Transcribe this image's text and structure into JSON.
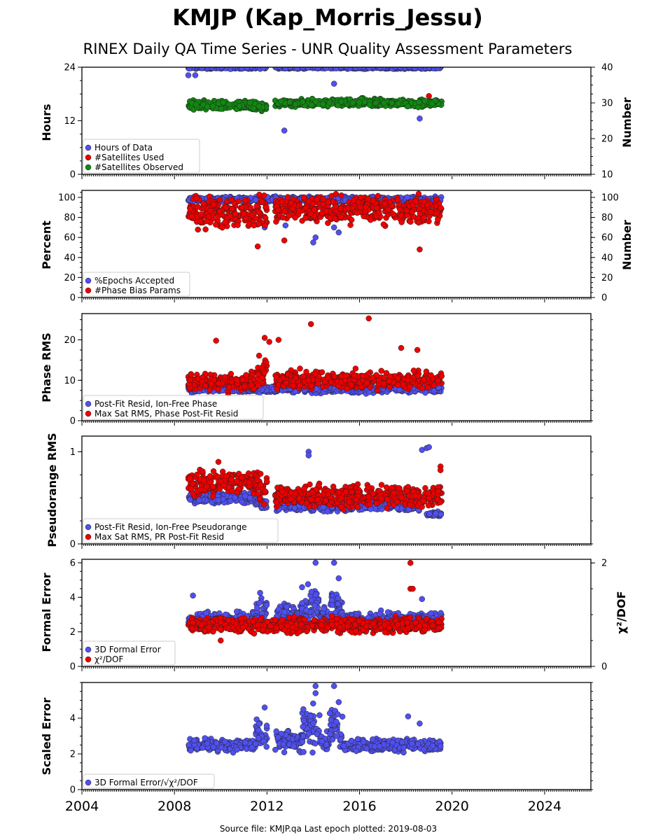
{
  "title": "KMJP (Kap_Morris_Jessu)",
  "subtitle": "RINEX Daily QA Time Series - UNR Quality Assessment Parameters",
  "source_text": "Source file: KMJP.qa Last epoch plotted: 2019-08-03",
  "colors": {
    "blue": "#5050f0",
    "red": "#ee0000",
    "green": "#118811"
  },
  "chart_data": [
    {
      "type": "scatter",
      "xlim": [
        2004,
        2026
      ],
      "xticks": [
        "2004",
        "2008",
        "2012",
        "2016",
        "2020",
        "2024"
      ],
      "ylabel": "Hours",
      "ylim": [
        0,
        24
      ],
      "yticks": [
        "0",
        "12",
        "24"
      ],
      "y2label": "Number",
      "y2lim": [
        10,
        40
      ],
      "y2ticks": [
        "10",
        "20",
        "30",
        "40"
      ],
      "series": [
        {
          "name": "Hours of Data",
          "color": "#5050f0",
          "axis": "left",
          "segments": [
            [
              2008.6,
              2012.0,
              23.9,
              0.3
            ],
            [
              2012.35,
              2019.55,
              23.9,
              0.3
            ]
          ],
          "outliers": [
            [
              2008.6,
              22.2
            ],
            [
              2008.9,
              22.2
            ],
            [
              2012.75,
              9.8
            ],
            [
              2014.9,
              20.3
            ],
            [
              2018.6,
              12.5
            ]
          ]
        },
        {
          "name": "#Satellites Used",
          "color": "#ee0000",
          "axis": "right",
          "segments": [],
          "outliers": [
            [
              2019.0,
              31.9
            ]
          ]
        },
        {
          "name": "#Satellites Observed",
          "color": "#118811",
          "axis": "right",
          "segments": [
            [
              2008.6,
              2011.2,
              29.3,
              1.6
            ],
            [
              2011.2,
              2012.0,
              29.0,
              1.6
            ],
            [
              2012.35,
              2019.55,
              30.0,
              1.3
            ]
          ],
          "outliers": []
        }
      ],
      "legend_pos": "lower-left"
    },
    {
      "type": "scatter",
      "xlim": [
        2004,
        2026
      ],
      "ylabel": "Percent",
      "ylim": [
        0,
        107
      ],
      "yticks": [
        "0",
        "20",
        "40",
        "60",
        "80",
        "100"
      ],
      "y2label": "Number",
      "y2lim": [
        0,
        107
      ],
      "y2ticks": [
        "0",
        "20",
        "40",
        "60",
        "80",
        "100"
      ],
      "series": [
        {
          "name": "%Epochs Accepted",
          "color": "#5050f0",
          "axis": "left",
          "segments": [
            [
              2008.6,
              2019.55,
              98,
              3
            ]
          ],
          "outliers": [
            [
              2011.9,
              70
            ],
            [
              2012.8,
              72
            ],
            [
              2014.0,
              55
            ],
            [
              2014.1,
              60
            ],
            [
              2014.9,
              70
            ],
            [
              2015.1,
              65
            ]
          ]
        },
        {
          "name": "#Phase Bias Params",
          "color": "#ee0000",
          "axis": "right",
          "segments": [
            [
              2008.6,
              2012.0,
              85,
              18
            ],
            [
              2012.35,
              2019.55,
              88,
              16
            ]
          ],
          "outliers": [
            [
              2011.6,
              51
            ],
            [
              2012.75,
              57
            ],
            [
              2018.6,
              48
            ]
          ]
        }
      ],
      "legend_pos": "lower-left"
    },
    {
      "type": "scatter",
      "xlim": [
        2004,
        2026
      ],
      "ylabel": "Phase RMS",
      "ylim": [
        0,
        26.5
      ],
      "yticks": [
        "0",
        "10",
        "20"
      ],
      "series": [
        {
          "name": "Post-Fit Resid, Ion-Free Phase",
          "color": "#5050f0",
          "axis": "left",
          "segments": [
            [
              2008.6,
              2019.55,
              7.8,
              1.0
            ]
          ],
          "outliers": []
        },
        {
          "name": "Max Sat RMS, Phase Post-Fit Resid",
          "color": "#ee0000",
          "axis": "left",
          "segments": [
            [
              2008.6,
              2011.6,
              9.5,
              2.5
            ],
            [
              2011.6,
              2012.0,
              12.0,
              5.0
            ],
            [
              2012.35,
              2019.55,
              10.0,
              2.5
            ]
          ],
          "outliers": [
            [
              2009.8,
              19.8
            ],
            [
              2011.9,
              20.5
            ],
            [
              2012.1,
              19.5
            ],
            [
              2012.5,
              20.0
            ],
            [
              2013.9,
              23.9
            ],
            [
              2016.4,
              25.3
            ],
            [
              2017.8,
              18.0
            ],
            [
              2018.5,
              17.5
            ]
          ]
        }
      ],
      "legend_pos": "lower-left"
    },
    {
      "type": "scatter",
      "xlim": [
        2004,
        2026
      ],
      "ylabel": "Pseudorange RMS",
      "ylim": [
        0,
        1.17
      ],
      "yticks": [
        "0",
        "1"
      ],
      "series": [
        {
          "name": "Post-Fit Resid, Ion-Free Pseudorange",
          "color": "#5050f0",
          "axis": "left",
          "segments": [
            [
              2008.6,
              2011.5,
              0.5,
              0.07
            ],
            [
              2011.5,
              2012.0,
              0.44,
              0.07
            ],
            [
              2012.35,
              2018.7,
              0.42,
              0.07
            ],
            [
              2018.9,
              2019.55,
              0.32,
              0.03
            ]
          ],
          "outliers": [
            [
              2013.8,
              1.0
            ],
            [
              2013.8,
              0.96
            ],
            [
              2018.7,
              1.02
            ],
            [
              2018.9,
              1.04
            ],
            [
              2019.0,
              1.05
            ]
          ]
        },
        {
          "name": "Max Sat RMS, PR Post-Fit Resid",
          "color": "#ee0000",
          "axis": "left",
          "segments": [
            [
              2008.6,
              2011.5,
              0.65,
              0.15
            ],
            [
              2011.5,
              2012.0,
              0.6,
              0.18
            ],
            [
              2012.35,
              2019.55,
              0.52,
              0.14
            ]
          ],
          "outliers": [
            [
              2009.9,
              0.89
            ],
            [
              2019.5,
              0.84
            ],
            [
              2019.5,
              0.8
            ]
          ]
        }
      ],
      "legend_pos": "lower-left"
    },
    {
      "type": "scatter",
      "xlim": [
        2004,
        2026
      ],
      "ylabel": "Formal Error",
      "ylim": [
        0,
        6.2
      ],
      "yticks": [
        "0",
        "2",
        "4",
        "6"
      ],
      "y2label": "χ²/DOF",
      "y2lim": [
        0,
        2.07
      ],
      "y2ticks": [
        "0",
        "2"
      ],
      "series": [
        {
          "name": "3D Formal Error",
          "color": "#5050f0",
          "axis": "left",
          "segments": [
            [
              2008.6,
              2011.5,
              2.7,
              0.5
            ],
            [
              2011.5,
              2012.0,
              3.2,
              1.0
            ],
            [
              2012.35,
              2013.5,
              3.0,
              0.8
            ],
            [
              2013.5,
              2014.3,
              3.6,
              1.5
            ],
            [
              2014.3,
              2014.7,
              2.9,
              0.6
            ],
            [
              2014.7,
              2015.3,
              3.5,
              1.3
            ],
            [
              2015.3,
              2019.55,
              2.7,
              0.5
            ]
          ],
          "outliers": [
            [
              2008.8,
              4.1
            ],
            [
              2014.1,
              6.0
            ],
            [
              2014.9,
              6.0
            ],
            [
              2015.1,
              5.1
            ],
            [
              2018.7,
              3.9
            ]
          ]
        },
        {
          "name": "χ²/DOF",
          "color": "#ee0000",
          "axis": "right",
          "segments": [
            [
              2008.6,
              2019.55,
              0.8,
              0.17
            ]
          ],
          "outliers": [
            [
              2010.0,
              0.5
            ],
            [
              2018.2,
              2.0
            ],
            [
              2018.2,
              1.5
            ],
            [
              2018.3,
              1.5
            ]
          ]
        }
      ],
      "legend": [
        "3D Formal Error",
        "χ²/DOF"
      ],
      "legend_pos": "lower-left"
    },
    {
      "type": "scatter",
      "xlim": [
        2004,
        2026
      ],
      "ylabel": "Scaled Error",
      "ylim": [
        0,
        6
      ],
      "yticks": [
        "0",
        "2",
        "4"
      ],
      "xticks": [
        "2004",
        "2008",
        "2012",
        "2016",
        "2020",
        "2024"
      ],
      "series": [
        {
          "name": "3D Formal Error/√χ²/DOF",
          "color": "#5050f0",
          "axis": "left",
          "segments": [
            [
              2008.6,
              2011.5,
              2.5,
              0.4
            ],
            [
              2011.5,
              2012.0,
              3.0,
              1.0
            ],
            [
              2012.35,
              2013.5,
              2.8,
              0.8
            ],
            [
              2013.5,
              2014.3,
              3.4,
              1.5
            ],
            [
              2014.3,
              2014.7,
              2.7,
              0.6
            ],
            [
              2014.7,
              2015.3,
              3.3,
              1.3
            ],
            [
              2015.3,
              2019.55,
              2.5,
              0.4
            ]
          ],
          "outliers": [
            [
              2011.9,
              4.6
            ],
            [
              2014.1,
              5.8
            ],
            [
              2014.1,
              5.4
            ],
            [
              2014.9,
              5.8
            ],
            [
              2015.1,
              4.9
            ],
            [
              2018.1,
              4.1
            ],
            [
              2018.6,
              3.7
            ]
          ]
        }
      ],
      "legend_pos": "lower-left"
    }
  ]
}
